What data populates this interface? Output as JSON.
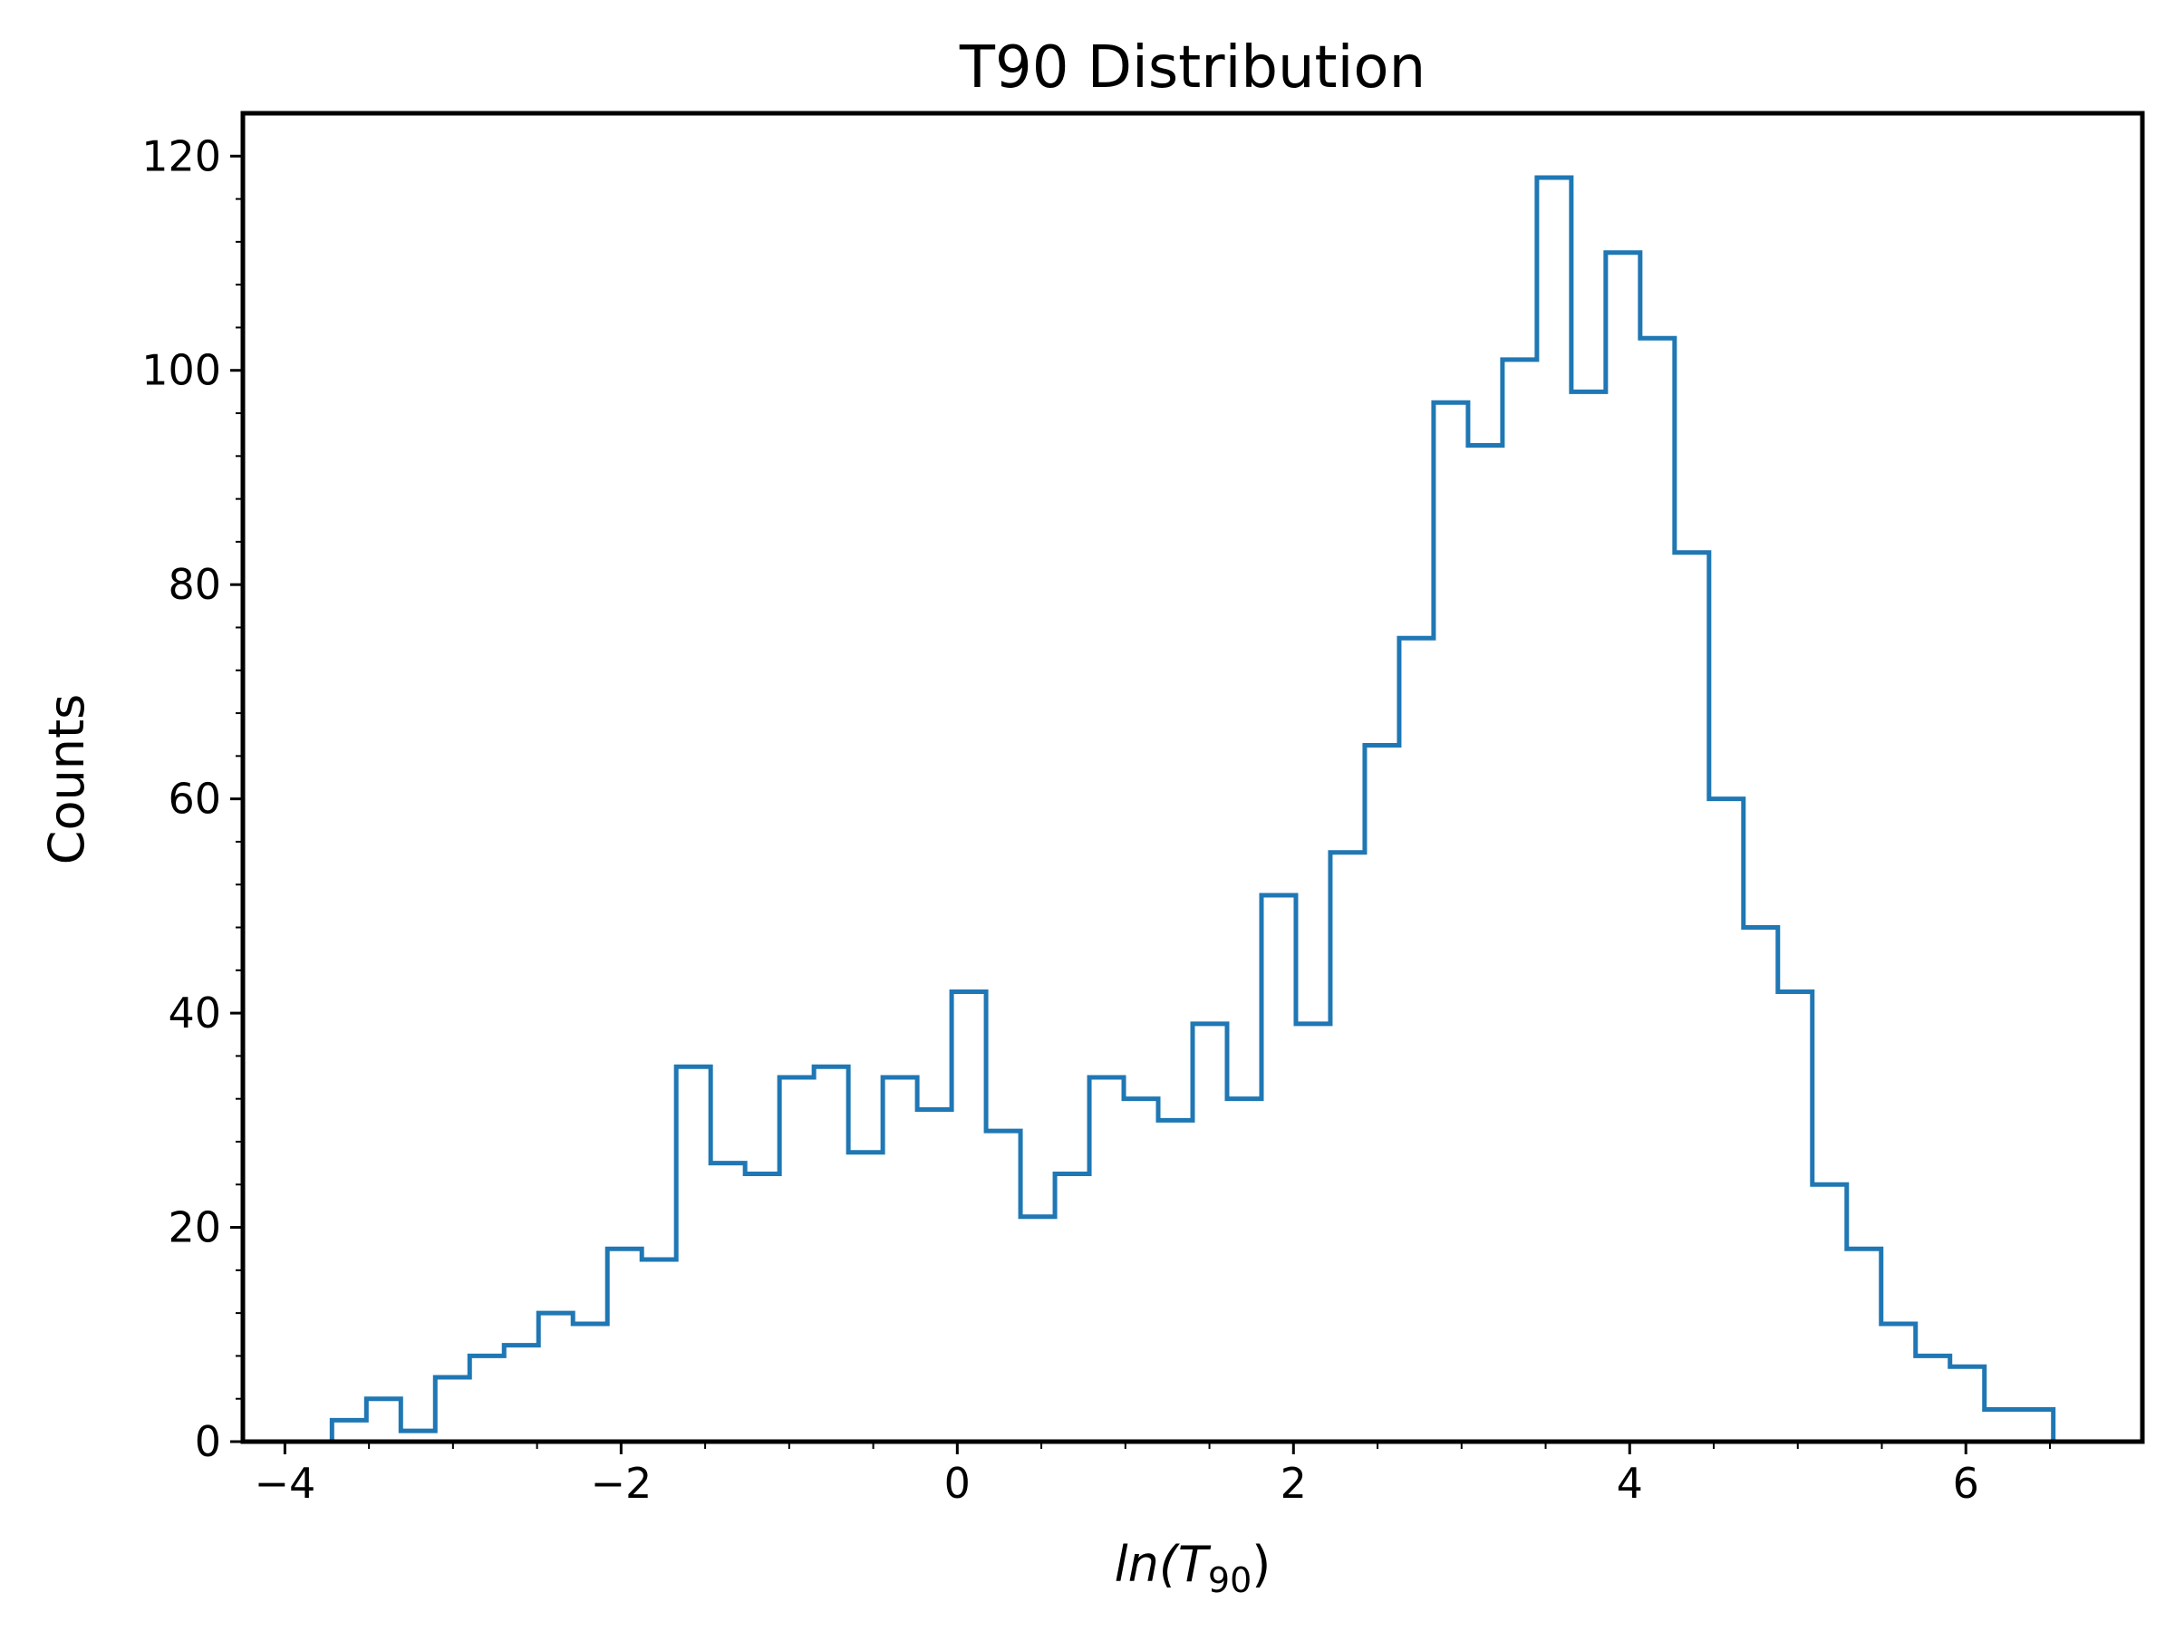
{
  "chart_data": {
    "type": "histogram",
    "title": "T90 Distribution",
    "xlabel": {
      "base": "ln(T",
      "subscript": "90",
      "close": ")"
    },
    "ylabel": "Counts",
    "xlim": [
      -4.25,
      7.05
    ],
    "ylim": [
      0,
      124
    ],
    "x_ticks": [
      -4,
      -2,
      0,
      2,
      4,
      6
    ],
    "x_tick_labels": [
      "−4",
      "−2",
      "0",
      "2",
      "4",
      "6"
    ],
    "x_minor_ticks": [
      -3.5,
      -3,
      -2.5,
      -1.5,
      -1,
      -0.5,
      0.5,
      1,
      1.5,
      2.5,
      3,
      3.5,
      4.5,
      5,
      5.5,
      6.5
    ],
    "y_ticks": [
      0,
      20,
      40,
      60,
      80,
      100,
      120
    ],
    "y_tick_labels": [
      "0",
      "20",
      "40",
      "60",
      "80",
      "100",
      "120"
    ],
    "y_minor_ticks": [
      4,
      8,
      12,
      16,
      24,
      28,
      32,
      36,
      44,
      48,
      52,
      56,
      64,
      68,
      72,
      76,
      84,
      88,
      92,
      96,
      104,
      108,
      112,
      116
    ],
    "bin_start": -3.72,
    "bin_end": 6.52,
    "counts": [
      2,
      4,
      1,
      6,
      8,
      9,
      12,
      11,
      18,
      17,
      35,
      26,
      25,
      34,
      35,
      27,
      34,
      31,
      42,
      29,
      21,
      25,
      34,
      32,
      30,
      39,
      32,
      51,
      39,
      55,
      65,
      75,
      97,
      93,
      101,
      118,
      98,
      111,
      103,
      83,
      60,
      48,
      42,
      24,
      18,
      11,
      8,
      7,
      3,
      3
    ],
    "line_color": "#1f77b4",
    "grid": false,
    "legend": false
  }
}
